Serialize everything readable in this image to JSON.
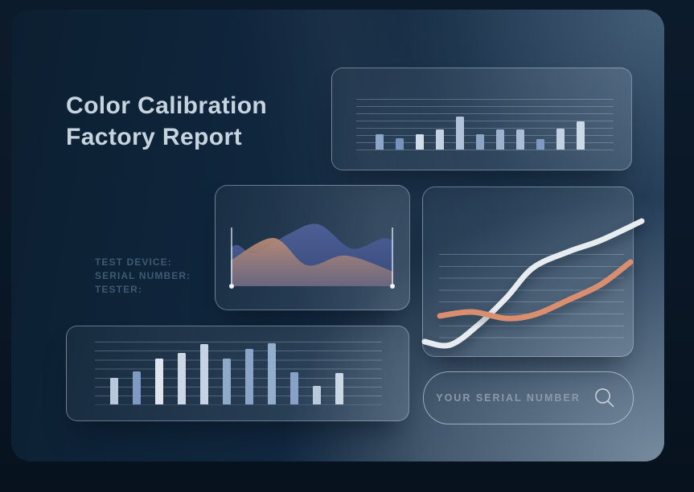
{
  "header": {
    "title_line1": "Color Calibration",
    "title_line2": "Factory Report"
  },
  "device_info": {
    "labels": [
      "TEST DEVICE:",
      "SERIAL NUMBER:",
      "TESTER:"
    ]
  },
  "search": {
    "placeholder": "YOUR SERIAL NUMBER",
    "icon": "magnifier"
  },
  "colors": {
    "background_outer": "#0a1726",
    "panel_dark": "#0c1f31",
    "panel_light": "#5e7081",
    "title_text": "#c6d4df",
    "muted_label": "#3d5a72",
    "search_text": "#8b99a9",
    "accent_orange": "#d98f6f",
    "curve_white": "#e7ecf1",
    "wave_blue": "#48598e",
    "wave_mauve": "#a98a7e"
  },
  "chart_data": [
    {
      "id": "top-bar-chart",
      "type": "bar",
      "title": "",
      "axis_labels": "none",
      "gridline_count": 8,
      "values_unit": "relative_height_px",
      "values": [
        19,
        14,
        19,
        25,
        41,
        19,
        25,
        25,
        13,
        26,
        35
      ],
      "colors": [
        "#8ba6c9",
        "#7793bd",
        "#d2dde9",
        "#c3d1e2",
        "#b0c2d8",
        "#8aa5c6",
        "#9cb2cf",
        "#a9bdd6",
        "#7e9ac0",
        "#c3d2e2",
        "#ccd9e6"
      ]
    },
    {
      "id": "wave-area-chart",
      "type": "area",
      "title": "",
      "axis_labels": "none",
      "baseline_y": 85,
      "endpoint_markers": "vertical-lines-with-dots",
      "series": [
        {
          "name": "blue-wave",
          "color": "#48598e",
          "points": [
            [
              0,
              37
            ],
            [
              9,
              34
            ],
            [
              31,
              44
            ],
            [
              72,
              20
            ],
            [
              109,
              8
            ],
            [
              150,
              38
            ],
            [
              187,
              26
            ],
            [
              202,
              28
            ]
          ]
        },
        {
          "name": "orange-wave",
          "color": "#b98c79",
          "points": [
            [
              0,
              53
            ],
            [
              53,
              25
            ],
            [
              95,
              59
            ],
            [
              143,
              47
            ],
            [
              202,
              67
            ]
          ]
        }
      ]
    },
    {
      "id": "calibration-curves",
      "type": "line",
      "title": "",
      "axis_labels": "none",
      "gridline_count": 8,
      "series": [
        {
          "name": "white-curve",
          "color": "#e7ecf1",
          "points": [
            [
              2,
              192
            ],
            [
              34,
              196
            ],
            [
              70,
              170
            ],
            [
              104,
              137
            ],
            [
              137,
              100
            ],
            [
              181,
              80
            ],
            [
              221,
              66
            ],
            [
              272,
              42
            ]
          ]
        },
        {
          "name": "orange-curve",
          "color": "#d98f6f",
          "points": [
            [
              21,
              160
            ],
            [
              61,
              155
            ],
            [
              104,
              163
            ],
            [
              140,
              158
            ],
            [
              181,
              140
            ],
            [
              221,
              121
            ],
            [
              258,
              93
            ]
          ]
        }
      ]
    },
    {
      "id": "bottom-bar-chart",
      "type": "bar",
      "title": "",
      "axis_labels": "none",
      "gridline_count": 8,
      "values_unit": "relative_height_px",
      "values": [
        33,
        41,
        57,
        64,
        75,
        57,
        69,
        76,
        40,
        23,
        39
      ],
      "colors": [
        "#b7c8db",
        "#7e9ac3",
        "#dee5ee",
        "#ccd7e5",
        "#c6d3e2",
        "#8fa9c9",
        "#8aa5c8",
        "#93adcc",
        "#87a2c6",
        "#b9c9dc",
        "#ccd7e4"
      ]
    }
  ]
}
